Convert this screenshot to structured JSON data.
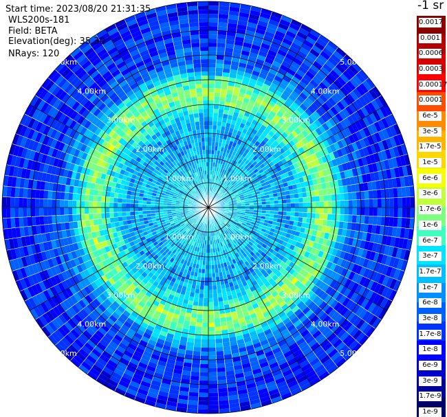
{
  "header": {
    "start_time": "Start time: 2023/08/20 21:31:35",
    "device": "WLS200s-181",
    "field": "Field: BETA",
    "elevation": "Elevation(deg): 35.30",
    "nrays": "NRays: 120"
  },
  "colorbar": {
    "title": "-1 sr",
    "colors": [
      "#8b0000",
      "#b40000",
      "#d50000",
      "#ff0000",
      "#ff4d00",
      "#ff8c00",
      "#ffb400",
      "#ffd700",
      "#f5ff00",
      "#bfff3f",
      "#7fff7f",
      "#3fffbf",
      "#00e5ff",
      "#00bfff",
      "#0090ff",
      "#0060ff",
      "#0033ff",
      "#0000ff",
      "#0000cc",
      "#000099",
      "#000066"
    ],
    "labels": [
      "0.0017",
      "0.001",
      "0.0006",
      "0.0003",
      "0.00017",
      "0.0001",
      "6e-5",
      "3e-5",
      "1.7e-5",
      "1e-5",
      "6e-6",
      "3e-6",
      "1.7e-6",
      "1e-6",
      "6e-7",
      "3e-7",
      "1.7e-7",
      "1e-7",
      "6e-8",
      "3e-8",
      "1.7e-8",
      "1e-8",
      "6e-9",
      "3e-9",
      "1.7e-9",
      "1e-9"
    ]
  },
  "chart_data": {
    "type": "heatmap",
    "subtype": "polar-ppi",
    "nrays": 120,
    "range_max_km": 5.0,
    "range_rings_km": [
      1.0,
      2.0,
      3.0,
      4.0,
      5.0
    ],
    "ring_labels": [
      "1.00km",
      "2.00km",
      "3.00km",
      "4.00km",
      "5.00km"
    ],
    "radial_spokes_deg": [
      0,
      30,
      60,
      90,
      120,
      150,
      180,
      210,
      240,
      270,
      300,
      330
    ],
    "color_scale": "log",
    "value_range": [
      1e-09,
      0.0017
    ],
    "profile": {
      "range_km": [
        0.0,
        0.5,
        1.0,
        1.5,
        2.0,
        2.5,
        2.8,
        3.1,
        3.4,
        3.7,
        4.0,
        4.5,
        5.0
      ],
      "beta_sr": [
        2e-07,
        2e-07,
        1.7e-07,
        1.2e-07,
        1e-07,
        6e-07,
        1.7e-06,
        6e-07,
        6e-08,
        3e-08,
        1.7e-08,
        1.7e-08,
        1e-08
      ]
    },
    "grid": true
  }
}
